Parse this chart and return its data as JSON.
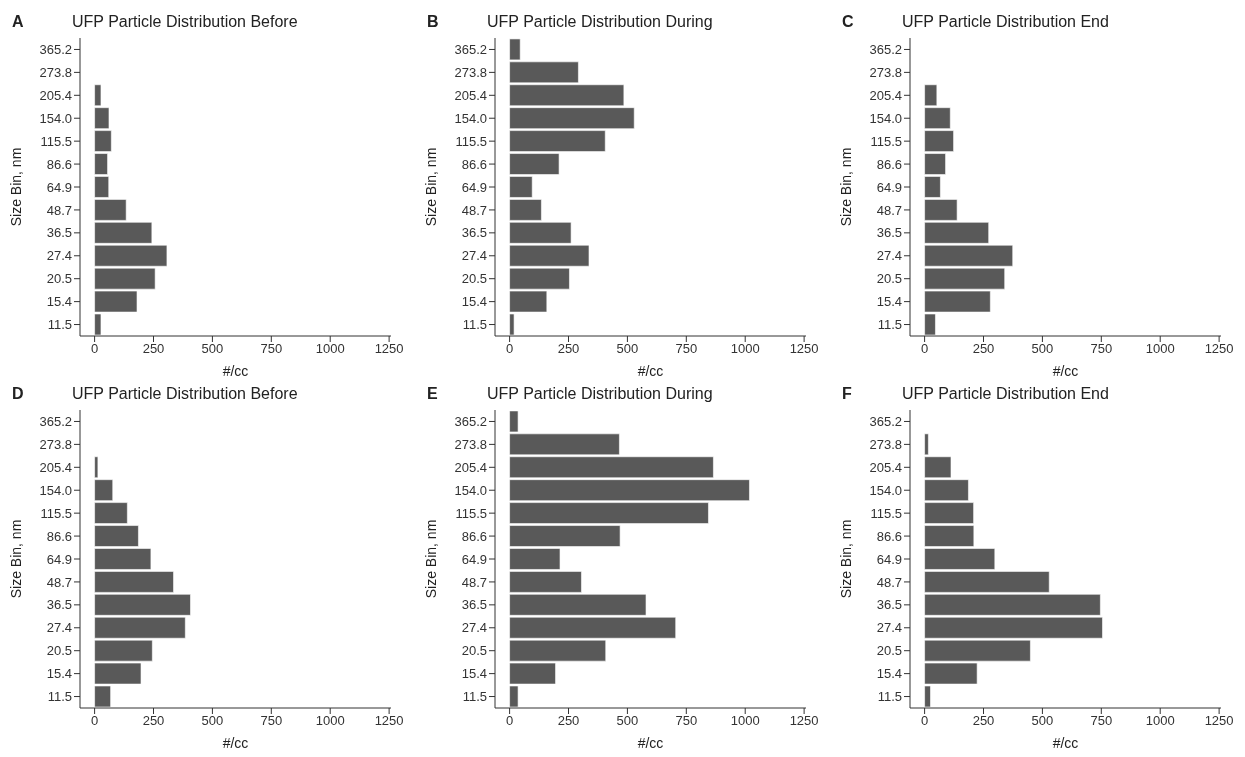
{
  "chart_data": [
    {
      "type": "bar",
      "orientation": "horizontal",
      "title": "UFP Particle Distribution Before",
      "annotations": [
        "A"
      ],
      "xlabel": "#/cc",
      "ylabel": "Size Bin, nm",
      "categories": [
        "365.2",
        "273.8",
        "205.4",
        "154.0",
        "115.5",
        "86.6",
        "64.9",
        "48.7",
        "36.5",
        "27.4",
        "20.5",
        "15.4",
        "11.5"
      ],
      "values": [
        null,
        null,
        27,
        61,
        71,
        55,
        60,
        134,
        243,
        307,
        257,
        180,
        27
      ],
      "color": "#595959",
      "xlim": [
        -62,
        1258
      ],
      "xticks": [
        0,
        250,
        500,
        750,
        1000,
        1250
      ],
      "grid": false
    },
    {
      "type": "bar",
      "orientation": "horizontal",
      "title": "UFP Particle Distribution During",
      "annotations": [
        "B"
      ],
      "xlabel": "#/cc",
      "ylabel": "Size Bin, nm",
      "categories": [
        "365.2",
        "273.8",
        "205.4",
        "154.0",
        "115.5",
        "86.6",
        "64.9",
        "48.7",
        "36.5",
        "27.4",
        "20.5",
        "15.4",
        "11.5"
      ],
      "values": [
        45,
        292,
        485,
        529,
        406,
        210,
        96,
        135,
        261,
        337,
        254,
        158,
        19
      ],
      "color": "#595959",
      "xlim": [
        -62,
        1258
      ],
      "xticks": [
        0,
        250,
        500,
        750,
        1000,
        1250
      ],
      "grid": false
    },
    {
      "type": "bar",
      "orientation": "horizontal",
      "title": "UFP Particle Distribution End",
      "annotations": [
        "C"
      ],
      "xlabel": "#/cc",
      "ylabel": "Size Bin, nm",
      "categories": [
        "365.2",
        "273.8",
        "205.4",
        "154.0",
        "115.5",
        "86.6",
        "64.9",
        "48.7",
        "36.5",
        "27.4",
        "20.5",
        "15.4",
        "11.5"
      ],
      "values": [
        null,
        null,
        52,
        109,
        123,
        89,
        67,
        138,
        272,
        374,
        340,
        279,
        46
      ],
      "color": "#595959",
      "xlim": [
        -62,
        1258
      ],
      "xticks": [
        0,
        250,
        500,
        750,
        1000,
        1250
      ],
      "grid": false
    },
    {
      "type": "bar",
      "orientation": "horizontal",
      "title": "UFP Particle Distribution Before",
      "annotations": [
        "D"
      ],
      "xlabel": "#/cc",
      "ylabel": "Size Bin, nm",
      "categories": [
        "365.2",
        "273.8",
        "205.4",
        "154.0",
        "115.5",
        "86.6",
        "64.9",
        "48.7",
        "36.5",
        "27.4",
        "20.5",
        "15.4",
        "11.5"
      ],
      "values": [
        null,
        null,
        14,
        77,
        139,
        186,
        239,
        335,
        407,
        385,
        245,
        197,
        68
      ],
      "color": "#595959",
      "xlim": [
        -62,
        1258
      ],
      "xticks": [
        0,
        250,
        500,
        750,
        1000,
        1250
      ],
      "grid": false
    },
    {
      "type": "bar",
      "orientation": "horizontal",
      "title": "UFP Particle Distribution During",
      "annotations": [
        "E"
      ],
      "xlabel": "#/cc",
      "ylabel": "Size Bin, nm",
      "categories": [
        "365.2",
        "273.8",
        "205.4",
        "154.0",
        "115.5",
        "86.6",
        "64.9",
        "48.7",
        "36.5",
        "27.4",
        "20.5",
        "15.4",
        "11.5"
      ],
      "values": [
        36,
        466,
        865,
        1018,
        844,
        469,
        214,
        305,
        579,
        705,
        408,
        195,
        36
      ],
      "color": "#595959",
      "xlim": [
        -62,
        1258
      ],
      "xticks": [
        0,
        250,
        500,
        750,
        1000,
        1250
      ],
      "grid": false
    },
    {
      "type": "bar",
      "orientation": "horizontal",
      "title": "UFP Particle Distribution End",
      "annotations": [
        "F"
      ],
      "xlabel": "#/cc",
      "ylabel": "Size Bin, nm",
      "categories": [
        "365.2",
        "273.8",
        "205.4",
        "154.0",
        "115.5",
        "86.6",
        "64.9",
        "48.7",
        "36.5",
        "27.4",
        "20.5",
        "15.4",
        "11.5"
      ],
      "values": [
        null,
        16,
        112,
        186,
        208,
        209,
        298,
        529,
        746,
        755,
        449,
        223,
        25
      ],
      "color": "#595959",
      "xlim": [
        -62,
        1258
      ],
      "xticks": [
        0,
        250,
        500,
        750,
        1000,
        1250
      ],
      "grid": false
    }
  ]
}
